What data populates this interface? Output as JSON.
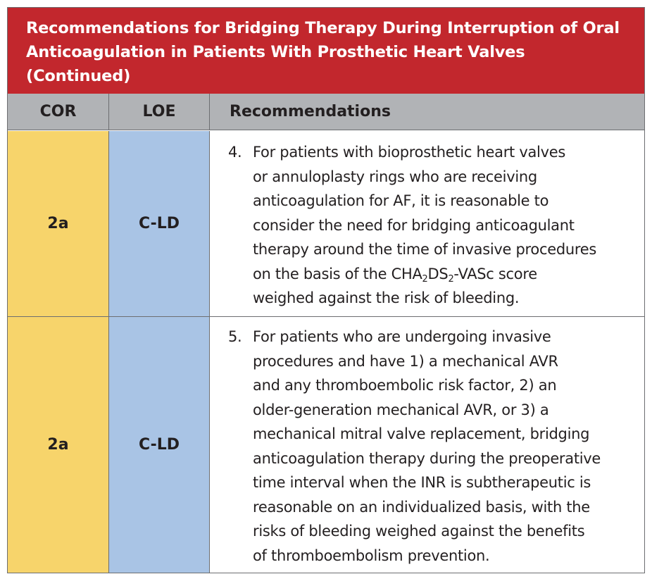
{
  "title": {
    "line1": "Recommendations for Bridging Therapy During Interruption of Oral",
    "line2": "Anticoagulation in Patients With Prosthetic Heart Valves",
    "line3": "(Continued)"
  },
  "columns": {
    "cor": "COR",
    "loe": "LOE",
    "recommendations": "Recommendations"
  },
  "rows": [
    {
      "cor": "2a",
      "loe": "C-LD",
      "number": "4.",
      "lines": [
        "For patients with bioprosthetic heart valves",
        "or annuloplasty rings who are receiving",
        "anticoagulation for AF, it is reasonable to",
        "consider the need for bridging anticoagulant",
        "therapy around the time of invasive procedures",
        "on the basis of the CHA",
        "2",
        "DS",
        "2",
        "-VASc score",
        "weighed against the risk of bleeding."
      ]
    },
    {
      "cor": "2a",
      "loe": "C-LD",
      "number": "5.",
      "lines": [
        "For patients who are undergoing invasive",
        "procedures and have 1) a mechanical AVR",
        "and any thromboembolic risk factor, 2) an",
        "older-generation mechanical AVR, or 3) a",
        "mechanical mitral valve replacement, bridging",
        "anticoagulation therapy during the preoperative",
        "time interval when the INR is subtherapeutic is",
        "reasonable on an individualized basis, with the",
        "risks of bleeding weighed against the benefits",
        "of thromboembolism prevention."
      ]
    }
  ],
  "colors": {
    "title_bg": "#c2272d",
    "header_bg": "#b1b3b6",
    "cor_bg": "#f7d46b",
    "loe_bg": "#a9c4e5"
  }
}
